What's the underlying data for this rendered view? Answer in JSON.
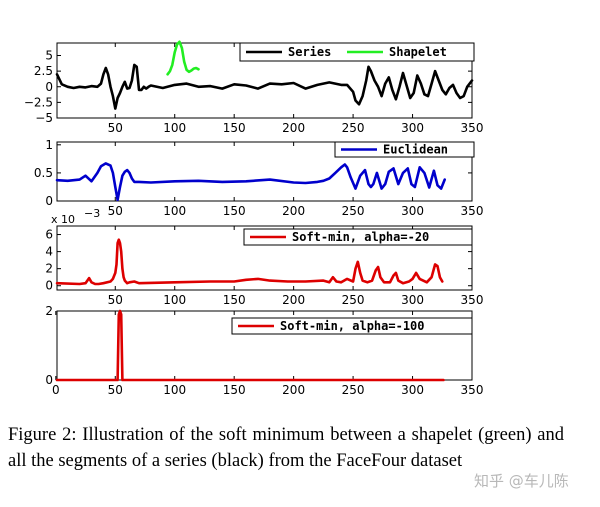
{
  "caption": "Figure 2:  Illustration of the soft minimum between a shapelet (green) and all the segments of a series (black) from the FaceFour dataset",
  "watermark": "知乎 @车儿陈",
  "colors": {
    "series": "#000000",
    "shapelet": "#22ee22",
    "euclidean": "#0000cc",
    "softmin": "#dd0000"
  },
  "chart_data": [
    {
      "type": "line",
      "xlim": [
        1,
        350
      ],
      "ylim": [
        -5,
        7
      ],
      "xticks": [
        50,
        100,
        150,
        200,
        250,
        300,
        350
      ],
      "yticks": [
        5,
        2.5,
        0,
        -2.5,
        -5
      ],
      "ytick_labels": [
        "5",
        "2.5",
        "0",
        "−2.5",
        "−5"
      ],
      "grid": false,
      "legend": "top-right",
      "series": [
        {
          "name": "Series",
          "color": "#000000",
          "x": [
            1,
            5,
            10,
            15,
            20,
            25,
            30,
            35,
            38,
            40,
            42,
            44,
            46,
            48,
            50,
            52,
            54,
            56,
            58,
            60,
            62,
            64,
            66,
            68,
            70,
            72,
            74,
            76,
            78,
            80,
            90,
            100,
            110,
            120,
            130,
            140,
            150,
            160,
            170,
            180,
            190,
            200,
            210,
            220,
            230,
            240,
            245,
            250,
            252,
            255,
            258,
            261,
            263,
            265,
            268,
            271,
            274,
            277,
            280,
            283,
            286,
            289,
            292,
            295,
            298,
            301,
            304,
            307,
            310,
            313,
            316,
            319,
            322,
            325,
            328,
            331,
            334,
            337,
            340,
            343,
            346,
            350
          ],
          "y": [
            2,
            0.4,
            0,
            -0.2,
            0,
            -0.1,
            0.1,
            0,
            0.5,
            2,
            3,
            2,
            0,
            -1.5,
            -3.5,
            -1.8,
            -1,
            0,
            0.8,
            -0.3,
            -0.2,
            1,
            3.5,
            3.2,
            -0.5,
            -0.5,
            0,
            -0.3,
            0,
            0.2,
            -0.2,
            0.3,
            0.5,
            0,
            0.1,
            -0.3,
            0.4,
            0.2,
            -0.3,
            0.5,
            0.4,
            0.6,
            -0.3,
            0.3,
            0.7,
            0.3,
            0.3,
            -0.8,
            -2.2,
            -2.8,
            -1.5,
            1,
            3.2,
            2.5,
            1,
            0,
            -1.5,
            0.5,
            1.5,
            -0.5,
            -2,
            0,
            2.2,
            0.2,
            -1.8,
            -1,
            1.8,
            0.5,
            -1.2,
            -1.5,
            0.5,
            2.5,
            1,
            -0.5,
            -1.2,
            -0.2,
            0.3,
            -1,
            -1.8,
            -1.5,
            0,
            1
          ]
        },
        {
          "name": "Shapelet",
          "color": "#22ee22",
          "x": [
            94,
            96,
            98,
            100,
            102,
            104,
            106,
            108,
            110,
            112,
            114,
            116,
            118,
            120
          ],
          "y": [
            2,
            2.5,
            3.5,
            5.5,
            6.8,
            7.2,
            6.2,
            4,
            2.7,
            2.4,
            2.6,
            2.9,
            3,
            2.8
          ]
        }
      ]
    },
    {
      "type": "line",
      "xlim": [
        1,
        350
      ],
      "ylim": [
        0,
        1.05
      ],
      "xticks": [
        50,
        100,
        150,
        200,
        250,
        300,
        350
      ],
      "yticks": [
        0,
        0.5,
        1
      ],
      "ytick_labels": [
        "0",
        "0.5",
        "1"
      ],
      "grid": false,
      "legend": "top-right",
      "series": [
        {
          "name": "Euclidean",
          "color": "#0000cc",
          "x": [
            1,
            10,
            20,
            25,
            30,
            35,
            38,
            42,
            46,
            48,
            50,
            52,
            54,
            56,
            58,
            60,
            62,
            64,
            66,
            70,
            80,
            100,
            120,
            140,
            160,
            180,
            200,
            210,
            220,
            225,
            230,
            235,
            240,
            243,
            245,
            248,
            252,
            256,
            260,
            263,
            265,
            267,
            270,
            274,
            277,
            280,
            284,
            288,
            292,
            296,
            299,
            302,
            306,
            310,
            314,
            318,
            321,
            324,
            327
          ],
          "y": [
            0.37,
            0.36,
            0.38,
            0.45,
            0.35,
            0.5,
            0.62,
            0.67,
            0.63,
            0.5,
            0.25,
            0.02,
            0.25,
            0.45,
            0.52,
            0.55,
            0.5,
            0.4,
            0.34,
            0.34,
            0.33,
            0.35,
            0.36,
            0.34,
            0.35,
            0.38,
            0.33,
            0.32,
            0.34,
            0.36,
            0.4,
            0.5,
            0.6,
            0.65,
            0.6,
            0.42,
            0.22,
            0.45,
            0.55,
            0.3,
            0.25,
            0.3,
            0.5,
            0.22,
            0.3,
            0.52,
            0.58,
            0.3,
            0.5,
            0.58,
            0.3,
            0.25,
            0.6,
            0.5,
            0.24,
            0.54,
            0.28,
            0.22,
            0.38
          ]
        }
      ]
    },
    {
      "type": "line",
      "multiplier_label": "x 10",
      "multiplier_exp": "−3",
      "xlim": [
        1,
        350
      ],
      "ylim": [
        -0.5,
        7
      ],
      "xticks": [
        50,
        100,
        150,
        200,
        250,
        300,
        350
      ],
      "yticks": [
        0,
        2,
        4,
        6
      ],
      "ytick_labels": [
        "0",
        "2",
        "4",
        "6"
      ],
      "grid": false,
      "legend": "top-right",
      "series": [
        {
          "name": "Soft-min, alpha=-20",
          "color": "#dd0000",
          "x": [
            1,
            20,
            25,
            28,
            30,
            33,
            36,
            40,
            46,
            48,
            50,
            51,
            52,
            53,
            54,
            55,
            56,
            57,
            58,
            60,
            62,
            66,
            70,
            100,
            130,
            150,
            160,
            170,
            180,
            195,
            210,
            225,
            230,
            233,
            236,
            240,
            245,
            250,
            252,
            254,
            256,
            258,
            262,
            266,
            269,
            271,
            273,
            276,
            281,
            284,
            286,
            288,
            292,
            297,
            300,
            303,
            306,
            312,
            316,
            319,
            321,
            323,
            325
          ],
          "y": [
            0.3,
            0.2,
            0.3,
            0.9,
            0.4,
            0.2,
            0.2,
            0.3,
            0.5,
            0.8,
            1.5,
            2.5,
            5,
            5.4,
            5,
            4,
            2,
            1,
            0.6,
            0.3,
            0.4,
            0.5,
            0.3,
            0.4,
            0.5,
            0.5,
            0.7,
            0.8,
            0.6,
            0.5,
            0.5,
            0.6,
            0.4,
            1,
            0.5,
            0.4,
            0.8,
            0.5,
            2,
            2.8,
            1.5,
            0.6,
            0.4,
            0.6,
            1.8,
            2.2,
            1,
            0.4,
            0.4,
            1.2,
            1.5,
            0.6,
            0.3,
            0.5,
            0.8,
            1.5,
            0.8,
            0.4,
            1,
            2.5,
            2.3,
            1,
            0.5
          ]
        }
      ]
    },
    {
      "type": "line",
      "xlim": [
        1,
        350
      ],
      "ylim": [
        0,
        2
      ],
      "xticks": [
        0,
        50,
        100,
        150,
        200,
        250,
        300,
        350
      ],
      "yticks": [
        0,
        2
      ],
      "ytick_labels": [
        "0",
        "2"
      ],
      "grid": false,
      "legend": "top-right",
      "series": [
        {
          "name": "Soft-min, alpha=-100",
          "color": "#dd0000",
          "x": [
            1,
            50,
            52,
            53,
            54,
            55,
            56,
            57,
            59,
            326
          ],
          "y": [
            0,
            0,
            0,
            1.9,
            2,
            1.9,
            0,
            0,
            0,
            0
          ]
        }
      ]
    }
  ]
}
